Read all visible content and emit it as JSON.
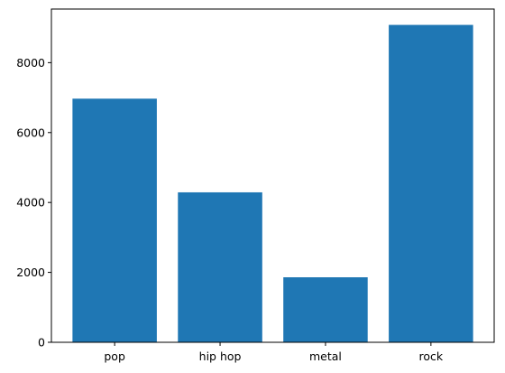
{
  "chart_data": {
    "type": "bar",
    "categories": [
      "pop",
      "hip hop",
      "metal",
      "rock"
    ],
    "values": [
      6970,
      4290,
      1860,
      9080
    ],
    "title": "",
    "xlabel": "",
    "ylabel": "",
    "ylim": [
      0,
      9534
    ],
    "yticks": [
      0,
      2000,
      4000,
      6000,
      8000
    ],
    "grid": false,
    "bar_color": "#1f77b4"
  }
}
